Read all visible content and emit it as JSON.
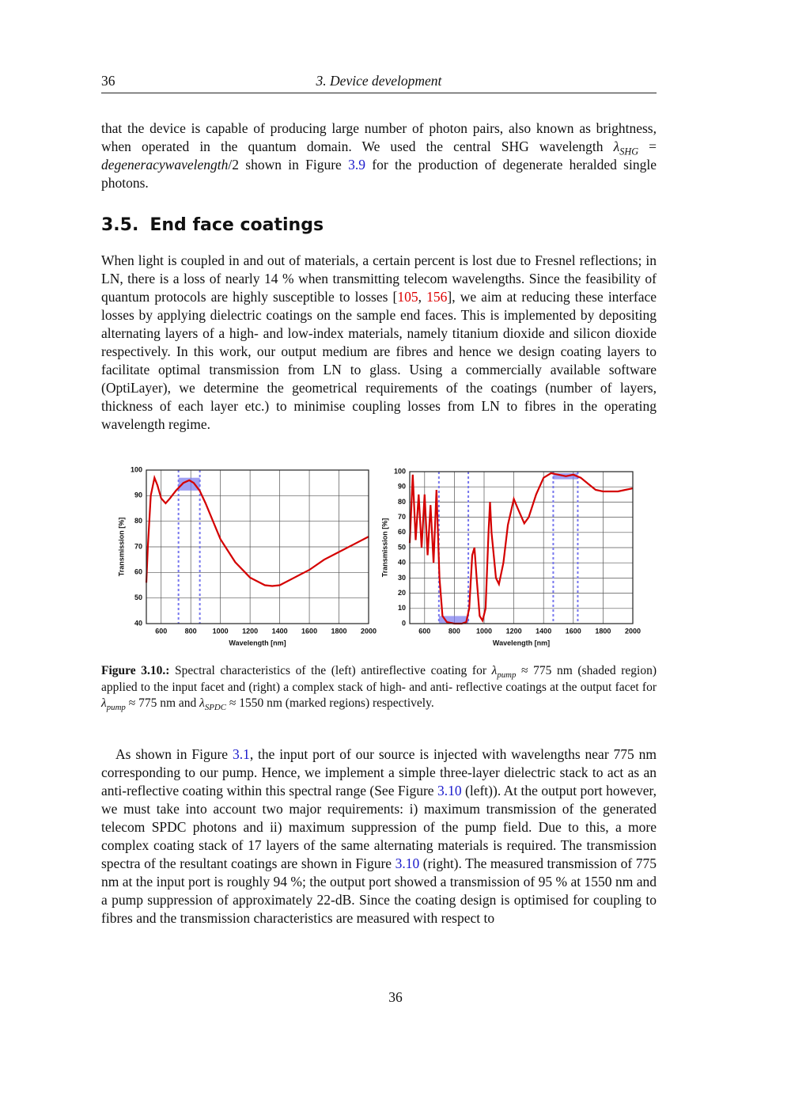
{
  "header": {
    "page": "36",
    "title": "3. Device development"
  },
  "paragraph_1": [
    {
      "text": "that the device is capable of producing large number of photon pairs, also known as brightness, when operated in the quantum domain. We used the central SHG wavelength "
    },
    {
      "text": "λ",
      "sub": "SHG",
      "italic": true
    },
    {
      "text": " = "
    },
    {
      "text": "degeneracywavelength",
      "italic": true
    },
    {
      "text": "/2 shown in Figure "
    },
    {
      "text": "3.9",
      "color": "#1a1acc"
    },
    {
      "text": " for the production of degenerate heralded single photons."
    }
  ],
  "section": {
    "number": "3.5.",
    "title": "End face coatings"
  },
  "paragraph_2": [
    {
      "text": "When light is coupled in and out of materials, a certain percent is lost due to Fresnel reflections; in LN, there is a loss of nearly 14 % when transmitting telecom wavelengths. Since the feasibility of quantum protocols are highly susceptible to losses ["
    },
    {
      "text": "105",
      "color": "#dd0000"
    },
    {
      "text": ", "
    },
    {
      "text": "156",
      "color": "#dd0000"
    },
    {
      "text": "], we aim at reducing these interface losses by applying dielectric coatings on the sample end faces. This is implemented by depositing alternating layers of a high- and low-index materials, namely titanium dioxide and silicon dioxide respectively. In this work, our output medium are fibres and hence we design coating layers to facilitate optimal transmission from LN to glass. Using a commercially available software (OptiLayer), we determine the geometrical requirements of the coatings (number of layers, thickness of each layer etc.) to minimise coupling losses from LN to fibres in the operating wavelength regime."
    }
  ],
  "chart_data": [
    {
      "type": "line",
      "x_label": "Wavelength [nm]",
      "y_label": "Transmission [%]",
      "xlim": [
        500,
        2000
      ],
      "xticks": [
        600,
        800,
        1000,
        1200,
        1400,
        1600,
        1800,
        2000
      ],
      "ylim": [
        40,
        100
      ],
      "yticks": [
        40,
        50,
        60,
        70,
        80,
        90,
        100
      ],
      "grid": true,
      "x": [
        500,
        510,
        530,
        555,
        575,
        600,
        630,
        660,
        700,
        750,
        790,
        820,
        860,
        900,
        950,
        1000,
        1100,
        1200,
        1300,
        1350,
        1400,
        1500,
        1600,
        1700,
        1800,
        1900,
        2000
      ],
      "series": [
        {
          "color": "#d40000",
          "values": [
            56,
            70,
            90,
            97,
            94,
            89,
            87,
            89,
            92,
            95,
            96,
            95,
            92,
            87,
            80,
            73,
            64,
            58,
            55,
            54.7,
            55,
            58,
            61,
            65,
            68,
            71,
            74
          ]
        }
      ],
      "regions": [
        {
          "x": [
            717,
            861
          ],
          "y": [
            92,
            97
          ],
          "color": "#7777ee"
        }
      ]
    },
    {
      "type": "line",
      "x_label": "Wavelength [nm]",
      "y_label": "Transmission [%]",
      "xlim": [
        500,
        2000
      ],
      "xticks": [
        600,
        800,
        1000,
        1200,
        1400,
        1600,
        1800,
        2000
      ],
      "ylim": [
        0,
        100
      ],
      "yticks": [
        0,
        10,
        20,
        30,
        40,
        50,
        60,
        70,
        80,
        90,
        100
      ],
      "grid": true,
      "x": [
        500,
        520,
        540,
        560,
        580,
        600,
        620,
        640,
        660,
        680,
        700,
        720,
        750,
        800,
        850,
        880,
        900,
        920,
        935,
        950,
        970,
        990,
        1010,
        1030,
        1040,
        1050,
        1080,
        1100,
        1130,
        1160,
        1200,
        1230,
        1270,
        1300,
        1350,
        1400,
        1450,
        1500,
        1550,
        1600,
        1650,
        1700,
        1750,
        1800,
        1850,
        1900,
        1950,
        2000
      ],
      "series": [
        {
          "color": "#d40000",
          "values": [
            53,
            98,
            55,
            85,
            50,
            85,
            45,
            78,
            40,
            88,
            30,
            5,
            1,
            0,
            0,
            1,
            10,
            45,
            50,
            30,
            5,
            2,
            10,
            60,
            80,
            60,
            30,
            26,
            40,
            65,
            82,
            75,
            66,
            70,
            85,
            96,
            99,
            98,
            97,
            98,
            96,
            92,
            88,
            87,
            87,
            87,
            88,
            89
          ]
        }
      ],
      "regions": [
        {
          "x": [
            696,
            894
          ],
          "y": [
            0,
            5
          ],
          "color": "#7777ee"
        },
        {
          "x": [
            1465,
            1630
          ],
          "y": [
            95,
            99
          ],
          "color": "#7777ee"
        }
      ]
    }
  ],
  "caption": [
    {
      "text": "Figure 3.10.:",
      "bold": true
    },
    {
      "text": " Spectral characteristics of the (left) antireflective coating for "
    },
    {
      "text": "λ",
      "sub": "pump",
      "italic": true
    },
    {
      "text": " ≈ 775 nm (shaded region) applied to the input facet and (right) a complex stack of high- and anti- reflective coatings at the output facet for "
    },
    {
      "text": "λ",
      "sub": "pump",
      "italic": true
    },
    {
      "text": " ≈ 775 nm and "
    },
    {
      "text": "λ",
      "sub": "SPDC",
      "italic": true
    },
    {
      "text": " ≈ 1550 nm (marked regions) respectively."
    }
  ],
  "paragraph_3": [
    {
      "text": "As shown in Figure "
    },
    {
      "text": "3.1",
      "color": "#1a1acc"
    },
    {
      "text": ", the input port of our source is injected with wavelengths near 775 nm corresponding to our pump. Hence, we implement a simple three-layer dielectric stack to act as an anti-reflective coating within this spectral range (See Figure "
    },
    {
      "text": "3.10",
      "color": "#1a1acc"
    },
    {
      "text": " (left)). At the output port however, we must take into account two major requirements: i) maximum transmission of the generated telecom SPDC photons and ii) maximum suppression of the pump field. Due to this, a more complex coating stack of 17 layers of the same alternating materials is required. The transmission spectra of the resultant coatings are shown in Figure "
    },
    {
      "text": "3.10",
      "color": "#1a1acc"
    },
    {
      "text": " (right). The measured transmission of 775 nm at the input port is roughly 94 %; the output port showed a transmission of 95 % at 1550 nm and a pump suppression of approximately 22-dB. Since the coating design is optimised for coupling to fibres and the transmission characteristics are measured with respect to"
    }
  ],
  "footer": {
    "page": "36"
  }
}
